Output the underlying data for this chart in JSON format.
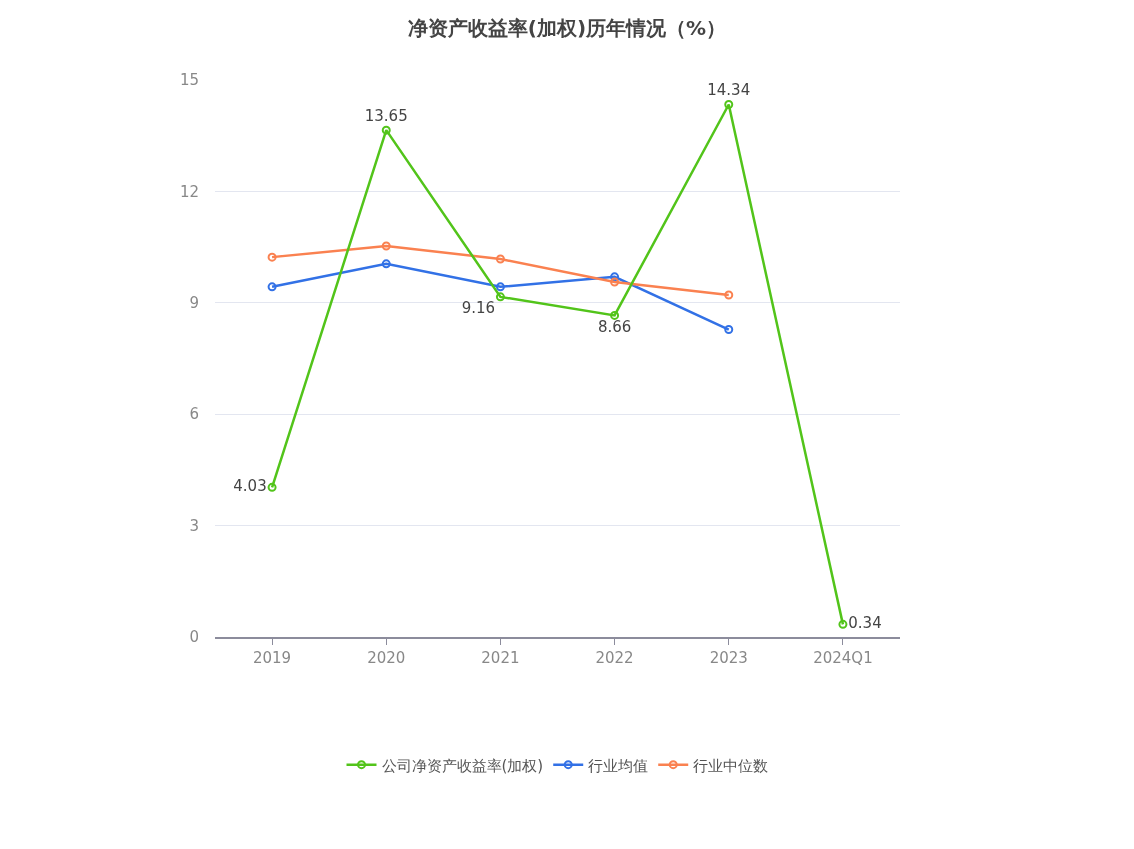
{
  "chart_data": {
    "type": "line",
    "title": "净资产收益率(加权)历年情况（%）",
    "categories": [
      "2019",
      "2020",
      "2021",
      "2022",
      "2023",
      "2024Q1"
    ],
    "series": [
      {
        "name": "公司净资产收益率(加权)",
        "color": "#52c41a",
        "values": [
          4.03,
          13.65,
          9.16,
          8.66,
          14.34,
          0.34
        ],
        "value_labels": [
          "4.03",
          "13.65",
          "9.16",
          "8.66",
          "14.34",
          "0.34"
        ]
      },
      {
        "name": "行业均值",
        "color": "#3271e6",
        "values": [
          9.43,
          10.05,
          9.43,
          9.7,
          8.28,
          null
        ]
      },
      {
        "name": "行业中位数",
        "color": "#fa8150",
        "values": [
          10.23,
          10.53,
          10.18,
          9.56,
          9.21,
          null
        ]
      }
    ],
    "ylim": [
      0,
      15
    ],
    "yticks": [
      0,
      3,
      6,
      9,
      12,
      15
    ],
    "grid": "y",
    "legend": "bottom",
    "marker": "circle",
    "line_style": "solid"
  }
}
